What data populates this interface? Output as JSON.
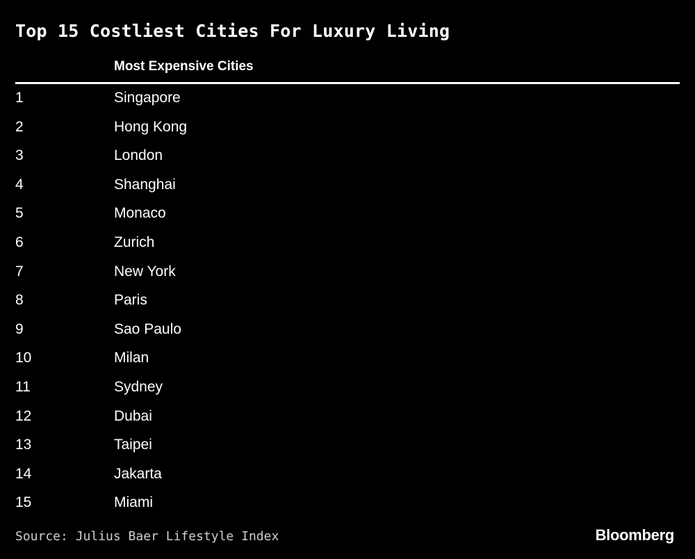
{
  "title": "Top 15 Costliest Cities For Luxury Living",
  "source": "Source: Julius Baer Lifestyle Index",
  "brand": "Bloomberg",
  "colors": {
    "background": "#000000",
    "text": "#ffffff",
    "source_text": "#cfcfcf",
    "rule": "#ffffff"
  },
  "chart_data": {
    "type": "table",
    "title": "Top 15 Costliest Cities For Luxury Living",
    "columns": [
      "",
      "Most Expensive Cities"
    ],
    "rows": [
      {
        "rank": "1",
        "city": "Singapore"
      },
      {
        "rank": "2",
        "city": "Hong Kong"
      },
      {
        "rank": "3",
        "city": "London"
      },
      {
        "rank": "4",
        "city": "Shanghai"
      },
      {
        "rank": "5",
        "city": "Monaco"
      },
      {
        "rank": "6",
        "city": "Zurich"
      },
      {
        "rank": "7",
        "city": "New York"
      },
      {
        "rank": "8",
        "city": "Paris"
      },
      {
        "rank": "9",
        "city": "Sao Paulo"
      },
      {
        "rank": "10",
        "city": "Milan"
      },
      {
        "rank": "11",
        "city": "Sydney"
      },
      {
        "rank": "12",
        "city": "Dubai"
      },
      {
        "rank": "13",
        "city": "Taipei"
      },
      {
        "rank": "14",
        "city": "Jakarta"
      },
      {
        "rank": "15",
        "city": "Miami"
      }
    ]
  }
}
